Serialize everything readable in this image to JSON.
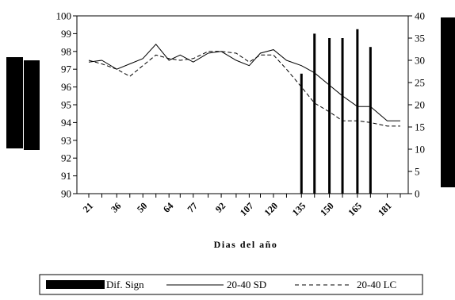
{
  "chart_data": {
    "type": "bar+line",
    "title": "",
    "xlabel": "Dias del año",
    "ylabel_left": "",
    "ylabel_right": "",
    "ylim_left": [
      90,
      100
    ],
    "ylim_right": [
      0,
      40
    ],
    "yticks_left": [
      "90",
      "91",
      "92",
      "93",
      "94",
      "95",
      "96",
      "97",
      "98",
      "99",
      "100"
    ],
    "yticks_right": [
      "0",
      "5",
      "10",
      "15",
      "20",
      "25",
      "30",
      "35",
      "40"
    ],
    "x_tick_labels": [
      "21",
      "36",
      "50",
      "64",
      "77",
      "92",
      "107",
      "120",
      "135",
      "150",
      "165",
      "181"
    ],
    "x": [
      21,
      28,
      36,
      43,
      50,
      57,
      64,
      70,
      77,
      85,
      92,
      100,
      107,
      113,
      120,
      127,
      135,
      142,
      150,
      157,
      165,
      172,
      181,
      188
    ],
    "series": [
      {
        "name": "20-40 SD",
        "axis": "left",
        "style": "solid",
        "values": [
          97.4,
          97.5,
          97.0,
          97.3,
          97.6,
          98.4,
          97.5,
          97.8,
          97.4,
          97.9,
          98.0,
          97.5,
          97.2,
          97.9,
          98.1,
          97.5,
          97.2,
          96.8,
          96.1,
          95.5,
          94.9,
          94.9,
          94.1,
          94.1
        ]
      },
      {
        "name": "20-40 LC",
        "axis": "left",
        "style": "dashed",
        "values": [
          97.5,
          97.3,
          97.0,
          96.6,
          97.2,
          97.8,
          97.6,
          97.5,
          97.6,
          98.0,
          98.0,
          97.9,
          97.4,
          97.8,
          97.8,
          97.0,
          96.0,
          95.1,
          94.6,
          94.1,
          94.1,
          94.0,
          93.8,
          93.8
        ]
      },
      {
        "name": "Dif. Sign",
        "axis": "right",
        "style": "bar",
        "points": [
          {
            "x": 135,
            "value": 27
          },
          {
            "x": 142,
            "value": 36
          },
          {
            "x": 150,
            "value": 35
          },
          {
            "x": 157,
            "value": 35
          },
          {
            "x": 165,
            "value": 37
          },
          {
            "x": 172,
            "value": 33
          }
        ]
      }
    ],
    "legend": {
      "placement": "bottom",
      "entries": [
        {
          "label": "Dif. Sign",
          "style": "bar"
        },
        {
          "label": "20-40 SD",
          "style": "solid"
        },
        {
          "label": "20-40 LC",
          "style": "dashed"
        }
      ]
    }
  }
}
